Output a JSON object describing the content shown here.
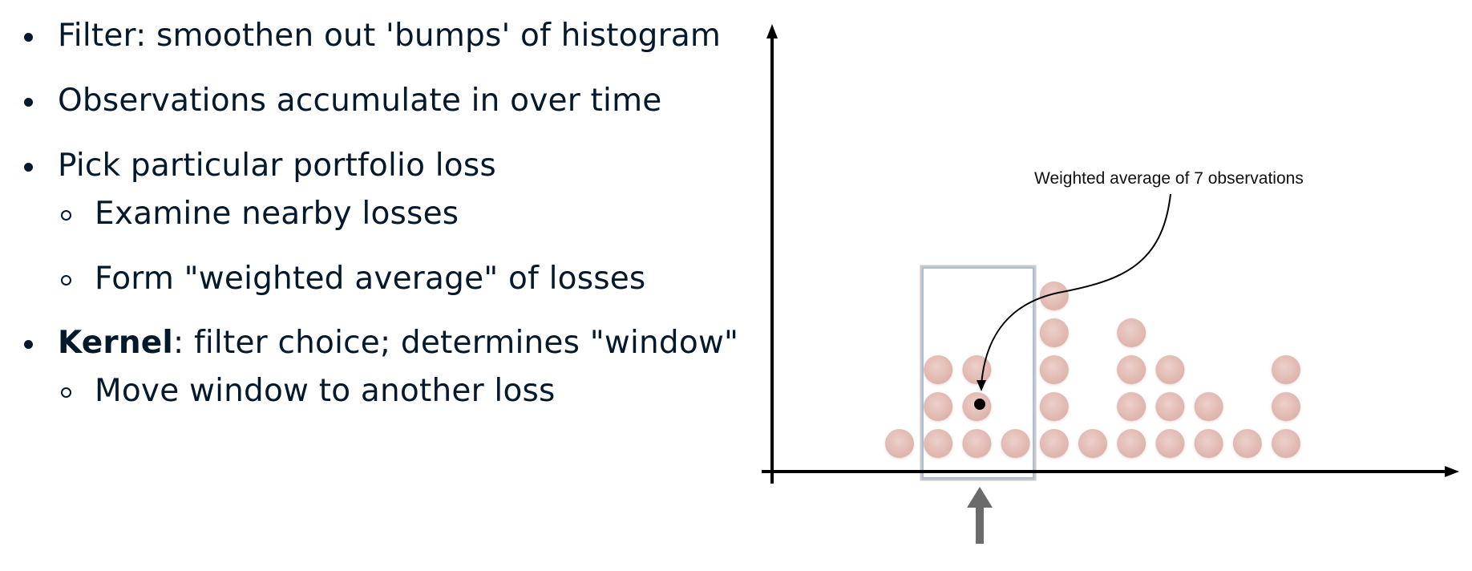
{
  "bullets": {
    "b1": "Filter: smoothen out 'bumps' of histogram",
    "b2": "Observations accumulate in over time",
    "b3": "Pick particular portfolio loss",
    "b3a": "Examine nearby losses",
    "b3b": "Form \"weighted average\" of losses",
    "b4_bold": "Kernel",
    "b4_rest": ": filter choice; determines \"window\"",
    "b4a": "Move window to another loss"
  },
  "diagram": {
    "callout": "Weighted average of 7 observations",
    "column_counts": [
      1,
      3,
      3,
      1,
      5,
      1,
      4,
      3,
      2,
      1,
      3
    ],
    "window_columns": [
      1,
      2,
      3
    ],
    "highlighted_column": 2,
    "colors": {
      "dot": "#e6c0b8",
      "axis": "#000000",
      "window": "#a9bfd4",
      "pointer": "#6b6b6b"
    }
  }
}
